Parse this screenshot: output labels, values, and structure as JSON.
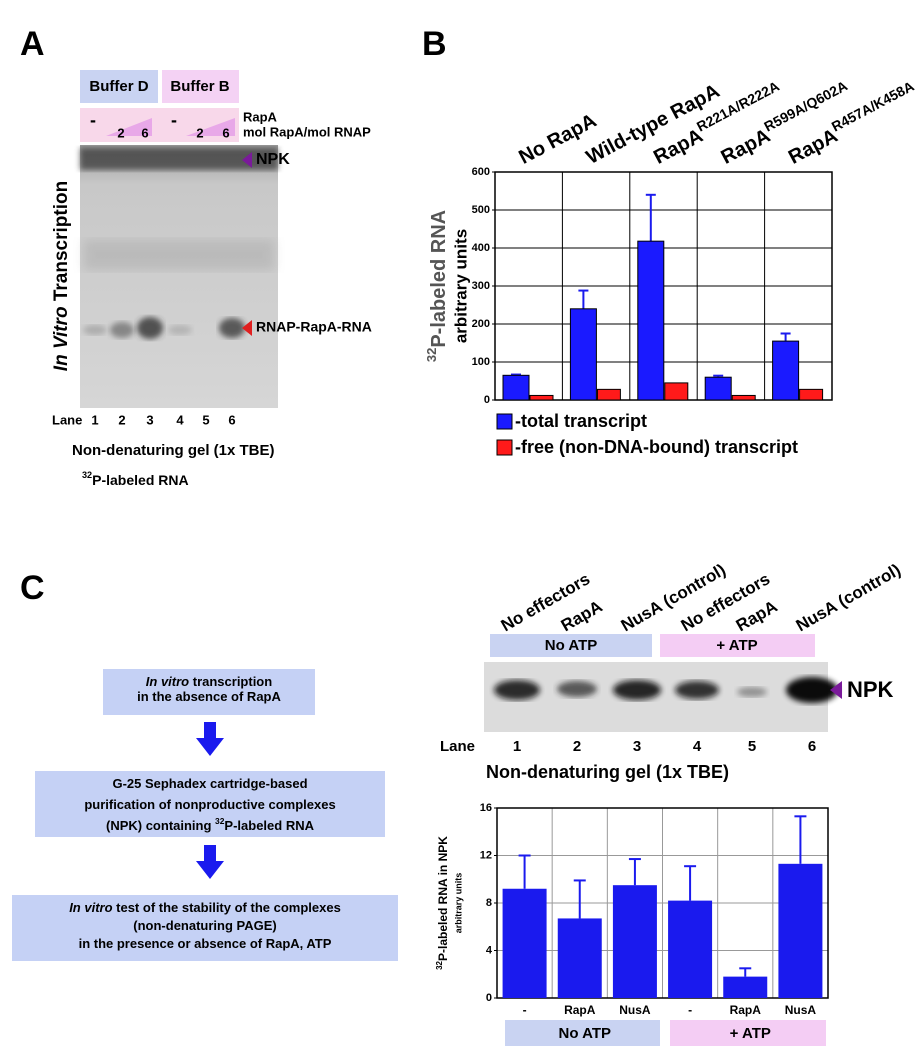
{
  "panel_a": {
    "letter": "A",
    "buffers": [
      "Buffer D",
      "Buffer B"
    ],
    "doses": [
      "-",
      "2",
      "6",
      "-",
      "2",
      "6"
    ],
    "dose_label": "RapA",
    "dose_unit": "mol RapA/mol RNAP",
    "bands": [
      "NPK",
      "RNAP-RapA-RNA"
    ],
    "side_label": [
      {
        "text": "In Vitro",
        "style": "italic"
      },
      {
        "text": " Transcription",
        "style": "normal"
      }
    ],
    "lane_label": "Lane",
    "lanes": [
      "1",
      "2",
      "3",
      "4",
      "5",
      "6"
    ],
    "gel_caption": "Non-denaturing gel (1x TBE)",
    "rna_label": [
      {
        "text": "32",
        "style": "sup"
      },
      {
        "text": "P-labeled RNA",
        "style": "normal"
      }
    ]
  },
  "panel_b": {
    "letter": "B"
  },
  "panel_c": {
    "letter": "C",
    "flow": [
      [
        [
          {
            "text": "In vitro",
            "style": "italic"
          },
          {
            "text": " transcription",
            "style": "normal"
          }
        ],
        [
          {
            "text": "in the absence of RapA",
            "style": "normal"
          }
        ]
      ],
      [
        [
          {
            "text": "G-25 Sephadex cartridge-based",
            "style": "normal"
          }
        ],
        [
          {
            "text": "purification of nonproductive complexes",
            "style": "normal"
          }
        ],
        [
          {
            "text": "(NPK) containing ",
            "style": "normal"
          },
          {
            "text": "32",
            "style": "sup"
          },
          {
            "text": "P-labeled RNA",
            "style": "normal"
          }
        ]
      ],
      [
        [
          {
            "text": "In vitro",
            "style": "italic"
          },
          {
            "text": " test of the stability of the complexes",
            "style": "normal"
          }
        ],
        [
          {
            "text": "(non-denaturing PAGE)",
            "style": "normal"
          }
        ],
        [
          {
            "text": "in the presence or absence of RapA, ATP",
            "style": "normal"
          }
        ]
      ]
    ],
    "conditions": [
      "No effectors",
      "RapA",
      "NusA (control)",
      "No effectors",
      "RapA",
      "NusA (control)"
    ],
    "atp_groups": [
      "No ATP",
      "+ ATP"
    ],
    "band": "NPK",
    "lane_label": "Lane",
    "lanes": [
      "1",
      "2",
      "3",
      "4",
      "5",
      "6"
    ],
    "gel_caption": "Non-denaturing gel (1x TBE)"
  },
  "chart_data": [
    {
      "type": "bar",
      "categories": [
        "No RapA",
        "Wild-type RapA",
        "RapA",
        "RapA",
        "RapA"
      ],
      "category_superscripts": [
        null,
        null,
        "R221A/R222A",
        "R599A/Q602A",
        "R457A/K458A"
      ],
      "ylabel_superscript": "32",
      "ylabel": "P-labeled RNA",
      "ylabel2": "arbitrary units",
      "series": [
        {
          "name": "-total transcript",
          "color": "#1a1aff",
          "values": [
            65,
            240,
            418,
            60,
            155
          ],
          "errors": [
            2,
            48,
            122,
            4,
            20
          ]
        },
        {
          "name": "-free (non-DNA-bound) transcript",
          "color": "#ff1a1a",
          "values": [
            12,
            28,
            45,
            12,
            28
          ]
        }
      ],
      "ylim": [
        0,
        600
      ],
      "yticks": [
        0,
        100,
        200,
        300,
        400,
        500,
        600
      ],
      "grid": true,
      "legend": "bottom-left"
    },
    {
      "type": "bar",
      "categories": [
        "-",
        "RapA",
        "NusA",
        "-",
        "RapA",
        "NusA"
      ],
      "groups": [
        "No ATP",
        "+ ATP"
      ],
      "ylabel_superscript": "32",
      "ylabel": "P-labeled RNA in NPK",
      "ylabel2": "arbitrary units",
      "color": "#1a1aee",
      "values": [
        9.2,
        6.7,
        9.5,
        8.2,
        1.8,
        11.3
      ],
      "errors": [
        2.8,
        3.2,
        2.2,
        2.9,
        0.7,
        4.0
      ],
      "ylim": [
        0,
        16
      ],
      "yticks": [
        0,
        4,
        8,
        12,
        16
      ],
      "grid": true
    }
  ]
}
